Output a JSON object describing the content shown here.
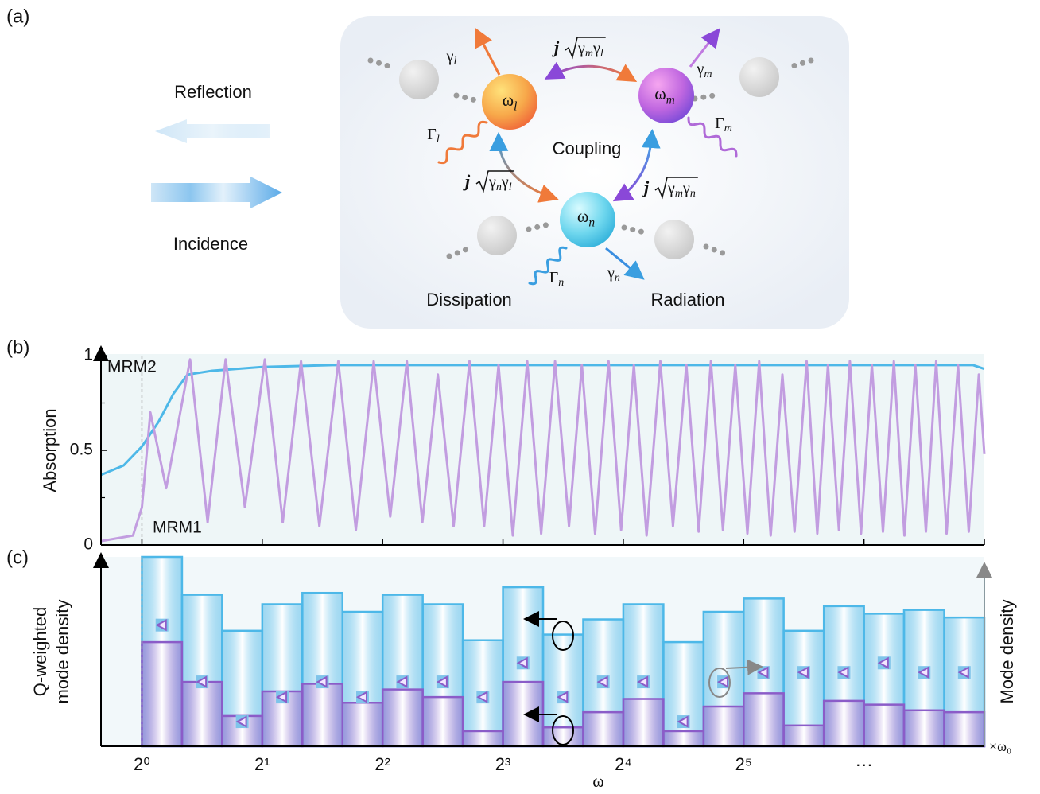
{
  "panel_labels": [
    "(a)",
    "(b)",
    "(c)"
  ],
  "diagram": {
    "reflection": "Reflection",
    "incidence": "Incidence",
    "coupling": "Coupling",
    "dissipation": "Dissipation",
    "radiation": "Radiation",
    "modes": [
      {
        "base": "ω",
        "sub": "l"
      },
      {
        "base": "ω",
        "sub": "m"
      },
      {
        "base": "ω",
        "sub": "n"
      }
    ],
    "radiation_rates": [
      {
        "base": "γ",
        "sub": "l"
      },
      {
        "base": "γ",
        "sub": "m"
      },
      {
        "base": "γ",
        "sub": "n"
      }
    ],
    "dissipation_rates": [
      {
        "base": "Γ",
        "sub": "l"
      },
      {
        "base": "Γ",
        "sub": "m"
      },
      {
        "base": "Γ",
        "sub": "n"
      }
    ],
    "couplings": [
      {
        "j": "j",
        "terms": [
          {
            "base": "γ",
            "sub": "m"
          },
          {
            "base": "γ",
            "sub": "l"
          }
        ]
      },
      {
        "j": "j",
        "terms": [
          {
            "base": "γ",
            "sub": "n"
          },
          {
            "base": "γ",
            "sub": "l"
          }
        ]
      },
      {
        "j": "j",
        "terms": [
          {
            "base": "γ",
            "sub": "m"
          },
          {
            "base": "γ",
            "sub": "n"
          }
        ]
      }
    ]
  },
  "chart_data": [
    {
      "type": "line",
      "y_label": "Absorption",
      "xscale": "log2",
      "xlim": [
        0.79,
        128
      ],
      "xticks": [
        1,
        2,
        4,
        8,
        16,
        32,
        64,
        128
      ],
      "ylim": [
        0,
        1
      ],
      "yticks": [
        0,
        0.5,
        1
      ],
      "yminor": [
        0.25,
        0.75
      ],
      "vline": 1,
      "series": [
        {
          "name": "MRM2",
          "color": "#4db8e8",
          "x": [
            0.79,
            0.9,
            1.0,
            1.1,
            1.2,
            1.3,
            1.5,
            2,
            3,
            8,
            64,
            120,
            128
          ],
          "values": [
            0.37,
            0.42,
            0.52,
            0.65,
            0.8,
            0.9,
            0.92,
            0.94,
            0.95,
            0.95,
            0.95,
            0.95,
            0.93
          ]
        },
        {
          "name": "MRM1",
          "color": "#c29de0",
          "x": [
            0.79,
            0.95,
            1.0,
            1.05,
            1.15,
            1.32,
            1.46,
            1.62,
            1.81,
            2.03,
            2.25,
            2.5,
            2.78,
            3.1,
            3.43,
            3.8,
            4.18,
            4.6,
            5.03,
            5.5,
            6.02,
            6.6,
            7.18,
            7.8,
            8.47,
            9.2,
            9.97,
            10.8,
            11.7,
            12.6,
            13.6,
            14.7,
            15.8,
            17,
            18.3,
            19.8,
            21.3,
            23,
            24.7,
            26.5,
            28.4,
            30.5,
            32.7,
            35,
            37.4,
            40,
            42.9,
            46,
            48.9,
            52,
            55.4,
            59,
            62.9,
            67,
            71.4,
            76,
            80.8,
            86,
            91.4,
            97,
            103,
            110,
            117,
            124,
            128
          ],
          "values": [
            0.02,
            0.05,
            0.2,
            0.7,
            0.3,
            0.98,
            0.12,
            0.98,
            0.2,
            0.98,
            0.12,
            0.97,
            0.1,
            0.97,
            0.08,
            0.97,
            0.15,
            0.97,
            0.12,
            0.9,
            0.1,
            0.97,
            0.1,
            0.95,
            0.05,
            0.97,
            0.06,
            0.97,
            0.1,
            0.95,
            0.06,
            0.97,
            0.08,
            0.95,
            0.05,
            0.97,
            0.1,
            0.95,
            0.07,
            0.97,
            0.08,
            0.95,
            0.06,
            0.97,
            0.05,
            0.9,
            0.07,
            0.97,
            0.06,
            0.95,
            0.08,
            0.97,
            0.06,
            0.95,
            0.07,
            0.97,
            0.05,
            0.95,
            0.07,
            0.97,
            0.06,
            0.95,
            0.07,
            0.9,
            0.48
          ]
        }
      ]
    },
    {
      "type": "histogram",
      "x_label": "ω",
      "x_unit": "×ω₀",
      "y_label": [
        "Q-weighted",
        "mode density"
      ],
      "y2_label": "Mode density",
      "xscale": "log2",
      "xlim": [
        0.79,
        128
      ],
      "xticks": [
        {
          "value": 1,
          "label": "2⁰"
        },
        {
          "value": 2,
          "label": "2¹"
        },
        {
          "value": 4,
          "label": "2²"
        },
        {
          "value": 8,
          "label": "2³"
        },
        {
          "value": 16,
          "label": "2⁴"
        },
        {
          "value": 32,
          "label": "2⁵"
        },
        {
          "value": 64,
          "label": "···"
        }
      ],
      "ylim": [
        0,
        1
      ],
      "y2lim": [
        0,
        1
      ],
      "vline": 1,
      "bins": [
        1,
        1.26,
        1.587,
        2,
        2.52,
        3.175,
        4,
        5.04,
        6.35,
        8,
        10.08,
        12.7,
        16,
        20.16,
        25.4,
        32,
        40.3,
        50.8,
        64,
        80.6,
        101.6,
        128
      ],
      "series": [
        {
          "color": "#4db8e8",
          "axis": "y2",
          "values": [
            1.0,
            0.8,
            0.61,
            0.75,
            0.81,
            0.71,
            0.8,
            0.75,
            0.56,
            0.84,
            0.59,
            0.67,
            0.75,
            0.55,
            0.71,
            0.78,
            0.61,
            0.74,
            0.7,
            0.72,
            0.68
          ]
        },
        {
          "color": "#8b5cc8",
          "values": [
            0.55,
            0.34,
            0.16,
            0.29,
            0.33,
            0.23,
            0.3,
            0.26,
            0.08,
            0.34,
            0.1,
            0.18,
            0.25,
            0.08,
            0.21,
            0.28,
            0.11,
            0.24,
            0.22,
            0.19,
            0.18
          ]
        },
        {
          "color": "#7fc4ea",
          "marker": "triangle",
          "values": [
            0.64,
            0.34,
            0.13,
            0.26,
            0.34,
            0.26,
            0.34,
            0.34,
            0.26,
            0.44,
            0.26,
            0.34,
            0.34,
            0.13,
            0.34,
            0.39,
            0.39,
            0.39,
            0.44,
            0.39,
            0.39
          ]
        }
      ]
    }
  ]
}
